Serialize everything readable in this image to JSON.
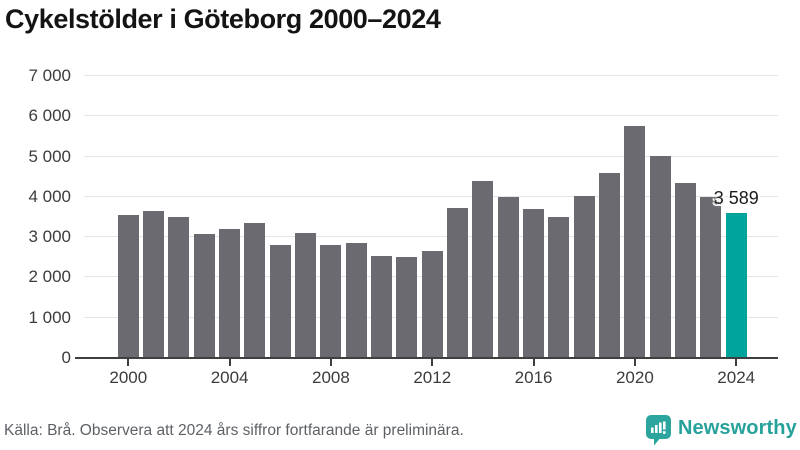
{
  "title": "Cykelstölder i Göteborg 2000–2024",
  "chart_data": {
    "type": "bar",
    "title": "Cykelstölder i Göteborg 2000–2024",
    "x": [
      2000,
      2001,
      2002,
      2003,
      2004,
      2005,
      2006,
      2007,
      2008,
      2009,
      2010,
      2011,
      2012,
      2013,
      2014,
      2015,
      2016,
      2017,
      2018,
      2019,
      2020,
      2021,
      2022,
      2023,
      2024
    ],
    "values": [
      3540,
      3660,
      3500,
      3090,
      3200,
      3340,
      2810,
      3110,
      2810,
      2850,
      2520,
      2500,
      2660,
      3720,
      4390,
      3990,
      3700,
      3490,
      4010,
      4590,
      5770,
      5010,
      4340,
      3990,
      3589
    ],
    "highlight_index": 24,
    "highlight_label": "3 589",
    "xlabel": "",
    "ylabel": "",
    "ylim": [
      0,
      7000
    ],
    "ytick_values": [
      0,
      1000,
      2000,
      3000,
      4000,
      5000,
      6000,
      7000
    ],
    "ytick_labels": [
      "0",
      "1 000",
      "2 000",
      "3 000",
      "4 000",
      "5 000",
      "6 000",
      "7 000"
    ],
    "xtick_years": [
      2000,
      2004,
      2008,
      2012,
      2016,
      2020,
      2024
    ],
    "xtick_labels": [
      "2000",
      "2004",
      "2008",
      "2012",
      "2016",
      "2020",
      "2024"
    ],
    "grid": true,
    "legend": "none",
    "colors": {
      "bar": "#6b6a71",
      "highlight": "#00a49c",
      "gridline": "#e5e5e5",
      "axis_line": "#3f3f3f",
      "axis_text": "#3c3c3c"
    }
  },
  "footer": {
    "source_note": "Källa: Brå. Observera att 2024 års siffror fortfarande är preliminära.",
    "brand_name": "Newsworthy",
    "brand_color": "#27a29b"
  }
}
